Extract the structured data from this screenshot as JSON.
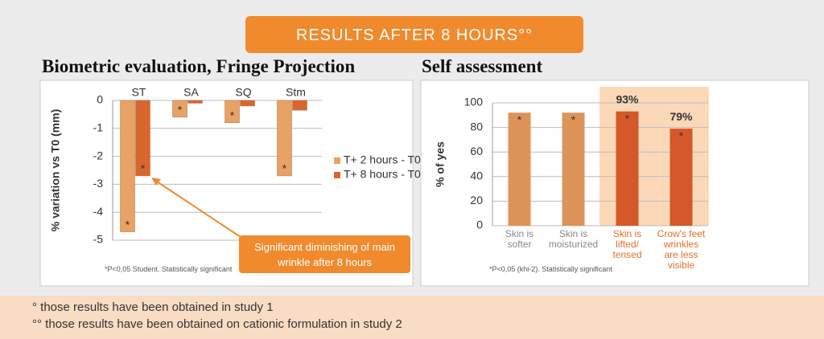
{
  "banner": "RESULTS AFTER 8 HOURS°°",
  "footnotes": [
    "° those results have been obtained in study 1",
    "°° those results have been obtained on cationic formulation in study 2"
  ],
  "chart_data": [
    {
      "type": "bar",
      "title": "Biometric evaluation, Fringe Projection",
      "y_label": "% variation vs T0 (mm)",
      "categories": [
        "ST",
        "SA",
        "SQ",
        "Stm"
      ],
      "series": [
        {
          "name": "T+ 2 hours - T0",
          "color": "#e8a265",
          "values": [
            -4.7,
            -0.6,
            -0.8,
            -2.7
          ],
          "significant": [
            true,
            true,
            true,
            true
          ]
        },
        {
          "name": "T+ 8 hours - T0",
          "color": "#d9662e",
          "values": [
            -2.7,
            -0.1,
            -0.2,
            -0.35
          ],
          "significant": [
            true,
            false,
            false,
            false
          ]
        }
      ],
      "significance_marker": "*",
      "ylim": [
        -5,
        0
      ],
      "yticks": [
        0,
        -1,
        -2,
        -3,
        -4,
        -5
      ],
      "grid": true,
      "legend": "right",
      "annotation": "Significant diminishing of main wrinkle after 8 hours",
      "note": "*P<0,05 Student. Statistically significant"
    },
    {
      "type": "bar",
      "title": "Self assessment",
      "y_label": "% of yes",
      "categories": [
        "Skin is softer",
        "Skin is moisturized",
        "Skin is lifted/ tensed",
        "Crow's feet wrinkles are less visible"
      ],
      "values": [
        92,
        92,
        93,
        79
      ],
      "value_labels": [
        null,
        null,
        "93%",
        "79%"
      ],
      "colors": [
        "#dc9458",
        "#dc9458",
        "#d4582a",
        "#d4582a"
      ],
      "highlight": [
        2,
        3
      ],
      "significance_marker": "*",
      "ylim": [
        0,
        100
      ],
      "yticks": [
        0,
        20,
        40,
        60,
        80,
        100
      ],
      "grid": true,
      "note": "*P<0,05  (khi-2). Statistically significant"
    }
  ]
}
